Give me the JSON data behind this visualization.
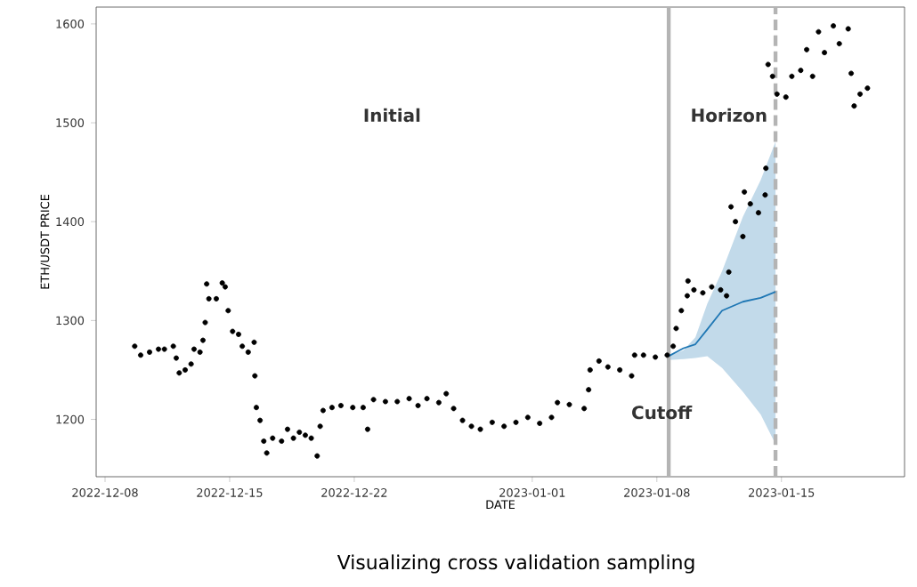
{
  "chart_data": {
    "type": "scatter",
    "title": "Visualizing cross validation sampling",
    "xlabel": "DATE",
    "ylabel": "ETH/USDT PRICE",
    "annotations": [
      "Initial"
    ],
    "xlim": [
      "2022-12-07T12:00",
      "2023-01-21T22:00"
    ],
    "ylim": [
      1142,
      1617
    ],
    "xticks": [
      "2022-12-08",
      "2022-12-15",
      "2022-12-22",
      "2023-01-01",
      "2023-01-08",
      "2023-01-15"
    ],
    "yticks": [
      1200,
      1300,
      1400,
      1500,
      1600
    ],
    "ref_lines": [
      {
        "axis": "x",
        "value": "2023-01-08T16:00",
        "label": "Cutoff",
        "color": "#b4b4b4",
        "line_style": "solid"
      },
      {
        "axis": "x",
        "value": "2023-01-14T16:00",
        "label": "Horizon",
        "color": "#b4b4b4",
        "line_style": "dashed"
      }
    ],
    "series": [
      {
        "color": "#000000",
        "marker": "circle",
        "x": [
          "2022-12-09T16:00",
          "2022-12-10T00:00",
          "2022-12-10T12:00",
          "2022-12-11T00:00",
          "2022-12-11T08:00",
          "2022-12-11T20:00",
          "2022-12-12T00:00",
          "2022-12-12T04:00",
          "2022-12-12T12:00",
          "2022-12-12T20:00",
          "2022-12-13T00:00",
          "2022-12-13T08:00",
          "2022-12-13T12:00",
          "2022-12-13T15:00",
          "2022-12-13T17:00",
          "2022-12-13T20:00",
          "2022-12-14T06:00",
          "2022-12-14T14:00",
          "2022-12-14T18:00",
          "2022-12-14T22:00",
          "2022-12-15T04:00",
          "2022-12-15T12:00",
          "2022-12-15T17:00",
          "2022-12-16T01:00",
          "2022-12-16T09:00",
          "2022-12-16T10:00",
          "2022-12-16T12:00",
          "2022-12-16T17:00",
          "2022-12-16T22:00",
          "2022-12-17T02:00",
          "2022-12-17T10:00",
          "2022-12-17T22:00",
          "2022-12-18T06:00",
          "2022-12-18T14:00",
          "2022-12-18T22:00",
          "2022-12-19T06:00",
          "2022-12-19T14:00",
          "2022-12-19T22:00",
          "2022-12-20T02:00",
          "2022-12-20T06:00",
          "2022-12-20T18:00",
          "2022-12-21T06:00",
          "2022-12-21T22:00",
          "2022-12-22T12:00",
          "2022-12-22T18:00",
          "2022-12-23T02:00",
          "2022-12-23T18:00",
          "2022-12-24T10:00",
          "2022-12-25T02:00",
          "2022-12-25T14:00",
          "2022-12-26T02:00",
          "2022-12-26T18:00",
          "2022-12-27T04:00",
          "2022-12-27T14:00",
          "2022-12-28T02:00",
          "2022-12-28T14:00",
          "2022-12-29T02:00",
          "2022-12-29T18:00",
          "2022-12-30T10:00",
          "2022-12-31T02:00",
          "2022-12-31T18:00",
          "2023-01-01T10:00",
          "2023-01-02T02:00",
          "2023-01-02T10:00",
          "2023-01-03T02:00",
          "2023-01-03T22:00",
          "2023-01-04T04:00",
          "2023-01-04T06:00",
          "2023-01-04T18:00",
          "2023-01-05T06:00",
          "2023-01-05T22:00",
          "2023-01-06T14:00",
          "2023-01-06T18:00",
          "2023-01-07T06:00",
          "2023-01-07T22:00",
          "2023-01-08T14:00",
          "2023-01-08T22:00",
          "2023-01-09T02:00",
          "2023-01-09T09:00",
          "2023-01-09T17:00",
          "2023-01-09T18:00",
          "2023-01-10T02:00",
          "2023-01-10T14:00",
          "2023-01-11T02:00",
          "2023-01-11T14:00",
          "2023-01-11T22:00",
          "2023-01-12T01:00",
          "2023-01-12T04:00",
          "2023-01-12T10:00",
          "2023-01-12T20:00",
          "2023-01-12T22:00",
          "2023-01-13T06:00",
          "2023-01-13T17:00",
          "2023-01-14T02:00",
          "2023-01-14T03:00",
          "2023-01-14T06:00",
          "2023-01-14T12:00",
          "2023-01-14T18:00",
          "2023-01-15T06:00",
          "2023-01-15T14:00",
          "2023-01-16T02:00",
          "2023-01-16T10:00",
          "2023-01-16T18:00",
          "2023-01-17T02:00",
          "2023-01-17T10:00",
          "2023-01-17T22:00",
          "2023-01-18T06:00",
          "2023-01-18T18:00",
          "2023-01-18T22:00",
          "2023-01-19T02:00",
          "2023-01-19T10:00",
          "2023-01-19T20:00"
        ],
        "values": [
          1274,
          1265,
          1268,
          1271,
          1271,
          1274,
          1262,
          1247,
          1250,
          1256,
          1271,
          1268,
          1280,
          1298,
          1337,
          1322,
          1322,
          1338,
          1334,
          1310,
          1289,
          1286,
          1274,
          1268,
          1278,
          1244,
          1212,
          1199,
          1178,
          1166,
          1181,
          1178,
          1190,
          1181,
          1187,
          1184,
          1181,
          1163,
          1193,
          1209,
          1212,
          1214,
          1212,
          1212,
          1190,
          1220,
          1218,
          1218,
          1221,
          1214,
          1221,
          1217,
          1226,
          1211,
          1199,
          1193,
          1190,
          1197,
          1193,
          1197,
          1202,
          1196,
          1202,
          1217,
          1215,
          1211,
          1230,
          1250,
          1259,
          1253,
          1250,
          1244,
          1265,
          1265,
          1263,
          1265,
          1274,
          1292,
          1310,
          1325,
          1340,
          1331,
          1328,
          1334,
          1331,
          1325,
          1349,
          1415,
          1400,
          1385,
          1430,
          1418,
          1409,
          1427,
          1454,
          1559,
          1547,
          1529,
          1526,
          1547,
          1553,
          1574,
          1547,
          1592,
          1571,
          1598,
          1580,
          1595,
          1550,
          1517,
          1529,
          1535
        ]
      },
      {
        "type": "line",
        "color": "#1f77b4",
        "x": [
          "2023-01-08T16:00",
          "2023-01-09T12:00",
          "2023-01-10T04:00",
          "2023-01-10T20:00",
          "2023-01-11T16:00",
          "2023-01-12T20:00",
          "2023-01-13T20:00",
          "2023-01-14T16:00"
        ],
        "values": [
          1264,
          1272,
          1276,
          1291,
          1310,
          1319,
          1323,
          1329
        ],
        "lower": [
          1260,
          1261,
          1262,
          1264,
          1252,
          1228,
          1205,
          1175
        ],
        "upper": [
          1264,
          1270,
          1283,
          1317,
          1350,
          1405,
          1442,
          1481
        ]
      }
    ]
  }
}
